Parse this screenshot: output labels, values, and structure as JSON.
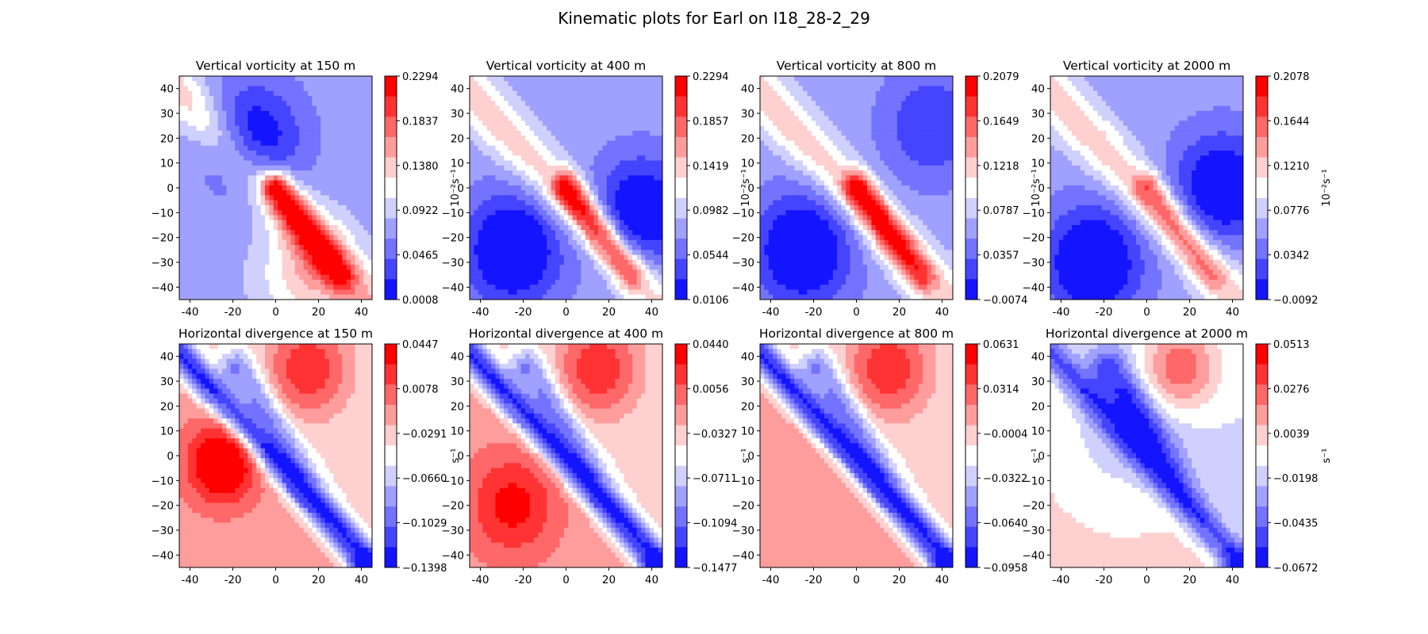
{
  "figure": {
    "title": "Kinematic plots for Earl on I18_28-2_29"
  },
  "colors": {
    "red_scale": [
      "#ff0000",
      "#ff3333",
      "#ff6868",
      "#ff9d9d",
      "#ffd0d0",
      "#ffffff"
    ],
    "blue_scale": [
      "#ffffff",
      "#d0d0ff",
      "#a0a0ff",
      "#7373ff",
      "#4545ff",
      "#1414ff"
    ],
    "frame": "#000000"
  },
  "chart_data": [
    {
      "type": "contour",
      "title": "Vertical vorticity at 150 m",
      "xlim": [
        -45,
        45
      ],
      "ylim": [
        -45,
        45
      ],
      "x_ticks": [
        "-40",
        "-20",
        "0",
        "20",
        "40"
      ],
      "y_ticks": [
        "40",
        "30",
        "20",
        "10",
        "0",
        "−10",
        "−20",
        "−30",
        "−40"
      ],
      "colorbar_ticks": [
        "0.2294",
        "0.1837",
        "0.1380",
        "0.0922",
        "0.0465",
        "0.0008"
      ],
      "colorbar_label": "10⁻²s⁻¹"
    },
    {
      "type": "contour",
      "title": "Vertical vorticity at 400 m",
      "xlim": [
        -45,
        45
      ],
      "ylim": [
        -45,
        45
      ],
      "x_ticks": [
        "-40",
        "-20",
        "0",
        "20",
        "40"
      ],
      "y_ticks": [
        "40",
        "30",
        "20",
        "10",
        "0",
        "−10",
        "−20",
        "−30",
        "−40"
      ],
      "colorbar_ticks": [
        "0.2294",
        "0.1857",
        "0.1419",
        "0.0982",
        "0.0544",
        "0.0106"
      ],
      "colorbar_label": "10⁻²s⁻¹"
    },
    {
      "type": "contour",
      "title": "Vertical vorticity at 800 m",
      "xlim": [
        -45,
        45
      ],
      "ylim": [
        -45,
        45
      ],
      "x_ticks": [
        "-40",
        "-20",
        "0",
        "20",
        "40"
      ],
      "y_ticks": [
        "40",
        "30",
        "20",
        "10",
        "0",
        "−10",
        "−20",
        "−30",
        "−40"
      ],
      "colorbar_ticks": [
        "0.2079",
        "0.1649",
        "0.1218",
        "0.0787",
        "0.0357",
        "−0.0074"
      ],
      "colorbar_label": "10⁻²s⁻¹"
    },
    {
      "type": "contour",
      "title": "Vertical vorticity at 2000 m",
      "xlim": [
        -45,
        45
      ],
      "ylim": [
        -45,
        45
      ],
      "x_ticks": [
        "-40",
        "-20",
        "0",
        "20",
        "40"
      ],
      "y_ticks": [
        "40",
        "30",
        "20",
        "10",
        "0",
        "−10",
        "−20",
        "−30",
        "−40"
      ],
      "colorbar_ticks": [
        "0.2078",
        "0.1644",
        "0.1210",
        "0.0776",
        "0.0342",
        "−0.0092"
      ],
      "colorbar_label": "10⁻²s⁻¹"
    },
    {
      "type": "contour",
      "title": "Horizontal divergence at 150 m",
      "xlim": [
        -45,
        45
      ],
      "ylim": [
        -45,
        45
      ],
      "x_ticks": [
        "-40",
        "-20",
        "0",
        "20",
        "40"
      ],
      "y_ticks": [
        "40",
        "30",
        "20",
        "10",
        "0",
        "−10",
        "−20",
        "−30",
        "−40"
      ],
      "colorbar_ticks": [
        "0.0447",
        "0.0078",
        "−0.0291",
        "−0.0660",
        "−0.1029",
        "−0.1398"
      ],
      "colorbar_label": "s⁻¹"
    },
    {
      "type": "contour",
      "title": "Horizontal divergence at 400 m",
      "xlim": [
        -45,
        45
      ],
      "ylim": [
        -45,
        45
      ],
      "x_ticks": [
        "-40",
        "-20",
        "0",
        "20",
        "40"
      ],
      "y_ticks": [
        "40",
        "30",
        "20",
        "10",
        "0",
        "−10",
        "−20",
        "−30",
        "−40"
      ],
      "colorbar_ticks": [
        "0.0440",
        "0.0056",
        "−0.0327",
        "−0.0711",
        "−0.1094",
        "−0.1477"
      ],
      "colorbar_label": "s⁻¹"
    },
    {
      "type": "contour",
      "title": "Horizontal divergence at 800 m",
      "xlim": [
        -45,
        45
      ],
      "ylim": [
        -45,
        45
      ],
      "x_ticks": [
        "-40",
        "-20",
        "0",
        "20",
        "40"
      ],
      "y_ticks": [
        "40",
        "30",
        "20",
        "10",
        "0",
        "−10",
        "−20",
        "−30",
        "−40"
      ],
      "colorbar_ticks": [
        "0.0631",
        "0.0314",
        "−0.0004",
        "−0.0322",
        "−0.0640",
        "−0.0958"
      ],
      "colorbar_label": "s⁻¹"
    },
    {
      "type": "contour",
      "title": "Horizontal divergence at 2000 m",
      "xlim": [
        -45,
        45
      ],
      "ylim": [
        -45,
        45
      ],
      "x_ticks": [
        "-40",
        "-20",
        "0",
        "20",
        "40"
      ],
      "y_ticks": [
        "40",
        "30",
        "20",
        "10",
        "0",
        "−10",
        "−20",
        "−30",
        "−40"
      ],
      "colorbar_ticks": [
        "0.0513",
        "0.0276",
        "0.0039",
        "−0.0198",
        "−0.0435",
        "−0.0672"
      ],
      "colorbar_label": "s⁻¹"
    }
  ]
}
